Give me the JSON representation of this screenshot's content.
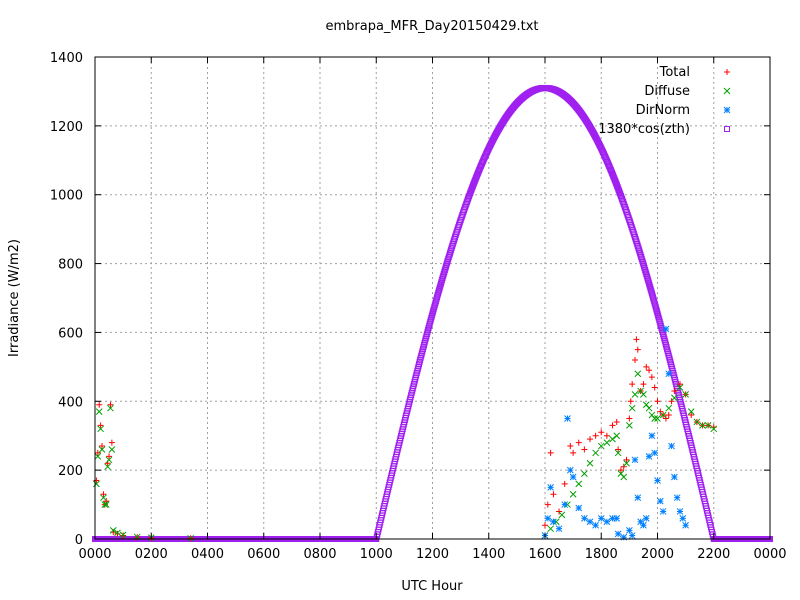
{
  "chart_data": {
    "type": "scatter",
    "title": "embrapa_MFR_Day20150429.txt",
    "xlabel": "UTC Hour",
    "ylabel": "Irradiance (W/m2)",
    "xlim": [
      0,
      24
    ],
    "ylim": [
      0,
      1400
    ],
    "grid": true,
    "legend_position": "top-right",
    "xticks": [
      {
        "v": 0,
        "label": "0000"
      },
      {
        "v": 2,
        "label": "0200"
      },
      {
        "v": 4,
        "label": "0400"
      },
      {
        "v": 6,
        "label": "0600"
      },
      {
        "v": 8,
        "label": "0800"
      },
      {
        "v": 10,
        "label": "1000"
      },
      {
        "v": 12,
        "label": "1200"
      },
      {
        "v": 14,
        "label": "1400"
      },
      {
        "v": 16,
        "label": "1600"
      },
      {
        "v": 18,
        "label": "1800"
      },
      {
        "v": 20,
        "label": "2000"
      },
      {
        "v": 22,
        "label": "2200"
      },
      {
        "v": 24,
        "label": "0000"
      }
    ],
    "yticks": [
      0,
      200,
      400,
      600,
      800,
      1000,
      1200,
      1400
    ],
    "series": [
      {
        "name": "Total",
        "marker": "plus",
        "color": "#ff0000",
        "points": [
          [
            0.05,
            170
          ],
          [
            0.1,
            250
          ],
          [
            0.15,
            390
          ],
          [
            0.2,
            330
          ],
          [
            0.25,
            270
          ],
          [
            0.3,
            130
          ],
          [
            0.35,
            100
          ],
          [
            0.4,
            110
          ],
          [
            0.45,
            220
          ],
          [
            0.5,
            240
          ],
          [
            0.55,
            390
          ],
          [
            0.6,
            280
          ],
          [
            0.65,
            20
          ],
          [
            0.8,
            15
          ],
          [
            1.0,
            10
          ],
          [
            1.5,
            5
          ],
          [
            2.0,
            3
          ],
          [
            3.4,
            2
          ],
          [
            16.0,
            40
          ],
          [
            16.1,
            100
          ],
          [
            16.2,
            250
          ],
          [
            16.3,
            130
          ],
          [
            16.5,
            80
          ],
          [
            16.7,
            160
          ],
          [
            16.8,
            350
          ],
          [
            16.9,
            270
          ],
          [
            17.0,
            250
          ],
          [
            17.2,
            280
          ],
          [
            17.4,
            260
          ],
          [
            17.6,
            290
          ],
          [
            17.8,
            300
          ],
          [
            18.0,
            310
          ],
          [
            18.2,
            300
          ],
          [
            18.4,
            330
          ],
          [
            18.55,
            340
          ],
          [
            18.6,
            260
          ],
          [
            18.7,
            200
          ],
          [
            18.8,
            210
          ],
          [
            18.9,
            230
          ],
          [
            19.0,
            350
          ],
          [
            19.05,
            400
          ],
          [
            19.1,
            450
          ],
          [
            19.2,
            520
          ],
          [
            19.25,
            580
          ],
          [
            19.3,
            550
          ],
          [
            19.4,
            430
          ],
          [
            19.5,
            450
          ],
          [
            19.6,
            500
          ],
          [
            19.7,
            490
          ],
          [
            19.8,
            470
          ],
          [
            19.9,
            440
          ],
          [
            20.0,
            400
          ],
          [
            20.1,
            370
          ],
          [
            20.2,
            360
          ],
          [
            20.3,
            350
          ],
          [
            20.4,
            360
          ],
          [
            20.5,
            400
          ],
          [
            20.6,
            430
          ],
          [
            20.8,
            450
          ],
          [
            21.0,
            420
          ],
          [
            21.2,
            360
          ],
          [
            21.4,
            340
          ],
          [
            21.6,
            330
          ],
          [
            21.8,
            330
          ],
          [
            22.0,
            325
          ]
        ]
      },
      {
        "name": "Diffuse",
        "marker": "cross",
        "color": "#00a000",
        "points": [
          [
            0.05,
            160
          ],
          [
            0.1,
            240
          ],
          [
            0.15,
            370
          ],
          [
            0.2,
            320
          ],
          [
            0.25,
            260
          ],
          [
            0.3,
            120
          ],
          [
            0.35,
            100
          ],
          [
            0.4,
            100
          ],
          [
            0.45,
            210
          ],
          [
            0.5,
            230
          ],
          [
            0.55,
            380
          ],
          [
            0.6,
            260
          ],
          [
            0.65,
            25
          ],
          [
            0.8,
            18
          ],
          [
            1.0,
            12
          ],
          [
            1.5,
            6
          ],
          [
            2.0,
            4
          ],
          [
            3.4,
            2
          ],
          [
            16.0,
            10
          ],
          [
            16.2,
            30
          ],
          [
            16.4,
            50
          ],
          [
            16.6,
            70
          ],
          [
            16.8,
            100
          ],
          [
            17.0,
            130
          ],
          [
            17.2,
            160
          ],
          [
            17.4,
            190
          ],
          [
            17.6,
            220
          ],
          [
            17.8,
            250
          ],
          [
            18.0,
            270
          ],
          [
            18.2,
            280
          ],
          [
            18.4,
            290
          ],
          [
            18.55,
            300
          ],
          [
            18.6,
            250
          ],
          [
            18.7,
            190
          ],
          [
            18.8,
            180
          ],
          [
            18.9,
            220
          ],
          [
            19.0,
            330
          ],
          [
            19.1,
            380
          ],
          [
            19.2,
            420
          ],
          [
            19.3,
            480
          ],
          [
            19.4,
            430
          ],
          [
            19.5,
            420
          ],
          [
            19.6,
            390
          ],
          [
            19.7,
            380
          ],
          [
            19.8,
            360
          ],
          [
            19.9,
            350
          ],
          [
            20.0,
            350
          ],
          [
            20.2,
            360
          ],
          [
            20.4,
            380
          ],
          [
            20.6,
            410
          ],
          [
            20.8,
            440
          ],
          [
            21.0,
            420
          ],
          [
            21.2,
            370
          ],
          [
            21.4,
            340
          ],
          [
            21.6,
            330
          ],
          [
            21.8,
            330
          ],
          [
            22.0,
            320
          ]
        ]
      },
      {
        "name": "DirNorm",
        "marker": "star",
        "color": "#0080ff",
        "points": [
          [
            16.0,
            10
          ],
          [
            16.1,
            60
          ],
          [
            16.2,
            150
          ],
          [
            16.3,
            50
          ],
          [
            16.5,
            30
          ],
          [
            16.7,
            100
          ],
          [
            16.8,
            350
          ],
          [
            16.9,
            200
          ],
          [
            17.0,
            180
          ],
          [
            17.2,
            90
          ],
          [
            17.4,
            60
          ],
          [
            17.6,
            50
          ],
          [
            17.8,
            40
          ],
          [
            18.0,
            60
          ],
          [
            18.2,
            50
          ],
          [
            18.4,
            60
          ],
          [
            18.55,
            60
          ],
          [
            18.6,
            15
          ],
          [
            18.8,
            5
          ],
          [
            19.0,
            25
          ],
          [
            19.1,
            10
          ],
          [
            19.2,
            230
          ],
          [
            19.3,
            120
          ],
          [
            19.4,
            50
          ],
          [
            19.5,
            40
          ],
          [
            19.6,
            60
          ],
          [
            19.7,
            240
          ],
          [
            19.8,
            300
          ],
          [
            19.9,
            250
          ],
          [
            20.0,
            170
          ],
          [
            20.1,
            110
          ],
          [
            20.2,
            80
          ],
          [
            20.3,
            610
          ],
          [
            20.4,
            480
          ],
          [
            20.5,
            270
          ],
          [
            20.6,
            180
          ],
          [
            20.7,
            120
          ],
          [
            20.8,
            80
          ],
          [
            20.9,
            60
          ],
          [
            21.0,
            40
          ]
        ]
      },
      {
        "name": "1380*cos(zth)",
        "marker": "square",
        "color": "#a020f0",
        "curve": {
          "amplitude": 1310,
          "peak_hour": 16.0,
          "zero_start": 10.0,
          "zero_end": 22.0,
          "step_hours": 0.02
        }
      }
    ]
  }
}
